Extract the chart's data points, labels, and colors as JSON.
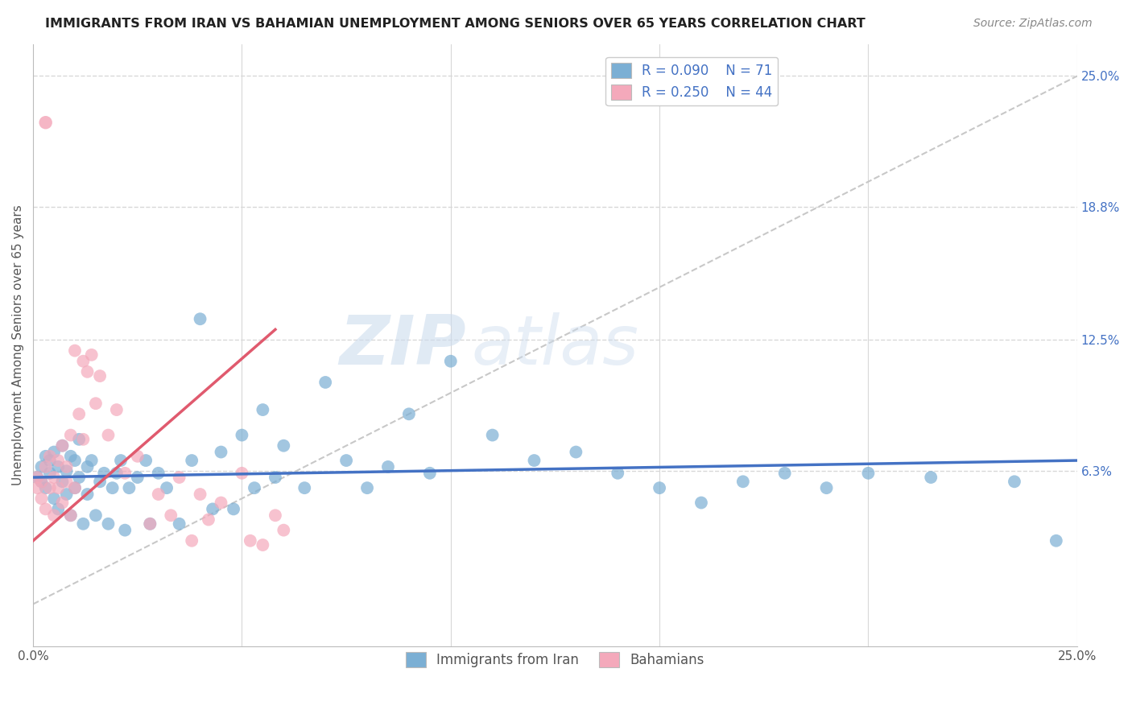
{
  "title": "IMMIGRANTS FROM IRAN VS BAHAMIAN UNEMPLOYMENT AMONG SENIORS OVER 65 YEARS CORRELATION CHART",
  "source": "Source: ZipAtlas.com",
  "ylabel": "Unemployment Among Seniors over 65 years",
  "x_min": 0.0,
  "x_max": 0.25,
  "y_min": -0.02,
  "y_max": 0.265,
  "y_tick_labels_right": [
    "6.3%",
    "12.5%",
    "18.8%",
    "25.0%"
  ],
  "y_tick_vals_right": [
    0.063,
    0.125,
    0.188,
    0.25
  ],
  "x_tick_left_label": "0.0%",
  "x_tick_right_label": "25.0%",
  "legend_label_1": "Immigrants from Iran",
  "legend_label_2": "Bahamians",
  "R1": 0.09,
  "N1": 71,
  "R2": 0.25,
  "N2": 44,
  "color_blue": "#7bafd4",
  "color_pink": "#f4a9bb",
  "color_blue_line": "#4472c4",
  "color_pink_line": "#e05a6e",
  "color_diag": "#c8c8c8",
  "blue_trend_x": [
    0.0,
    0.25
  ],
  "blue_trend_y": [
    0.06,
    0.068
  ],
  "pink_trend_x": [
    0.0,
    0.058
  ],
  "pink_trend_y": [
    0.03,
    0.13
  ],
  "blue_scatter_x": [
    0.001,
    0.002,
    0.002,
    0.003,
    0.003,
    0.004,
    0.004,
    0.005,
    0.005,
    0.006,
    0.006,
    0.007,
    0.007,
    0.008,
    0.008,
    0.009,
    0.009,
    0.01,
    0.01,
    0.011,
    0.011,
    0.012,
    0.013,
    0.013,
    0.014,
    0.015,
    0.016,
    0.017,
    0.018,
    0.019,
    0.02,
    0.021,
    0.022,
    0.023,
    0.025,
    0.027,
    0.028,
    0.03,
    0.032,
    0.035,
    0.038,
    0.04,
    0.043,
    0.045,
    0.048,
    0.05,
    0.053,
    0.055,
    0.058,
    0.06,
    0.065,
    0.07,
    0.075,
    0.08,
    0.085,
    0.09,
    0.095,
    0.1,
    0.11,
    0.12,
    0.13,
    0.14,
    0.15,
    0.16,
    0.17,
    0.18,
    0.19,
    0.2,
    0.215,
    0.235,
    0.245
  ],
  "blue_scatter_y": [
    0.06,
    0.058,
    0.065,
    0.055,
    0.07,
    0.062,
    0.068,
    0.05,
    0.072,
    0.045,
    0.065,
    0.058,
    0.075,
    0.052,
    0.063,
    0.042,
    0.07,
    0.055,
    0.068,
    0.078,
    0.06,
    0.038,
    0.065,
    0.052,
    0.068,
    0.042,
    0.058,
    0.062,
    0.038,
    0.055,
    0.062,
    0.068,
    0.035,
    0.055,
    0.06,
    0.068,
    0.038,
    0.062,
    0.055,
    0.038,
    0.068,
    0.135,
    0.045,
    0.072,
    0.045,
    0.08,
    0.055,
    0.092,
    0.06,
    0.075,
    0.055,
    0.105,
    0.068,
    0.055,
    0.065,
    0.09,
    0.062,
    0.115,
    0.08,
    0.068,
    0.072,
    0.062,
    0.055,
    0.048,
    0.058,
    0.062,
    0.055,
    0.062,
    0.06,
    0.058,
    0.03
  ],
  "pink_scatter_x": [
    0.001,
    0.001,
    0.002,
    0.002,
    0.003,
    0.003,
    0.004,
    0.004,
    0.005,
    0.005,
    0.006,
    0.006,
    0.007,
    0.007,
    0.008,
    0.008,
    0.009,
    0.009,
    0.01,
    0.01,
    0.011,
    0.012,
    0.012,
    0.013,
    0.014,
    0.015,
    0.016,
    0.018,
    0.02,
    0.022,
    0.025,
    0.028,
    0.03,
    0.033,
    0.035,
    0.038,
    0.04,
    0.042,
    0.045,
    0.05,
    0.052,
    0.055,
    0.058,
    0.06
  ],
  "pink_scatter_y": [
    0.06,
    0.055,
    0.058,
    0.05,
    0.045,
    0.065,
    0.055,
    0.07,
    0.042,
    0.06,
    0.055,
    0.068,
    0.048,
    0.075,
    0.058,
    0.065,
    0.042,
    0.08,
    0.055,
    0.12,
    0.09,
    0.115,
    0.078,
    0.11,
    0.118,
    0.095,
    0.108,
    0.08,
    0.092,
    0.062,
    0.07,
    0.038,
    0.052,
    0.042,
    0.06,
    0.03,
    0.052,
    0.04,
    0.048,
    0.062,
    0.03,
    0.028,
    0.042,
    0.035
  ],
  "pink_high_x": [
    0.003
  ],
  "pink_high_y": [
    0.228
  ]
}
